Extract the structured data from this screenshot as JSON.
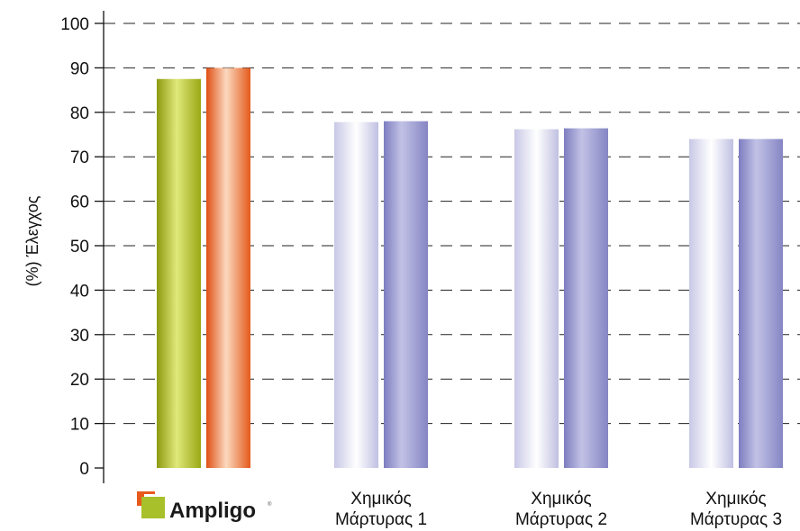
{
  "chart_data": {
    "type": "bar",
    "ylabel": "(%) Έλεγχος",
    "ylim": [
      0,
      100
    ],
    "yticks": [
      0,
      10,
      20,
      30,
      40,
      50,
      60,
      70,
      80,
      90,
      100
    ],
    "grid": "dashed-horizontal",
    "categories": [
      {
        "label": "Ampligo",
        "is_logo": true
      },
      {
        "line1": "Χημικός",
        "line2": "Μάρτυρας 1"
      },
      {
        "line1": "Χημικός",
        "line2": "Μάρτυρας 2"
      },
      {
        "line1": "Χημικός",
        "line2": "Μάρτυρας 3"
      }
    ],
    "series": [
      {
        "values": [
          87.5,
          77.8,
          76.2,
          74.0
        ]
      },
      {
        "values": [
          90.0,
          78.0,
          76.4,
          74.0
        ]
      }
    ],
    "colors": {
      "ampligo_bar1": "#a8b81a",
      "ampligo_bar2": "#e8591c",
      "other_bar1": "#d9d9f0",
      "other_bar2": "#8f8fc8",
      "logo_orange": "#e8591c",
      "logo_green": "#a8c02a"
    }
  }
}
